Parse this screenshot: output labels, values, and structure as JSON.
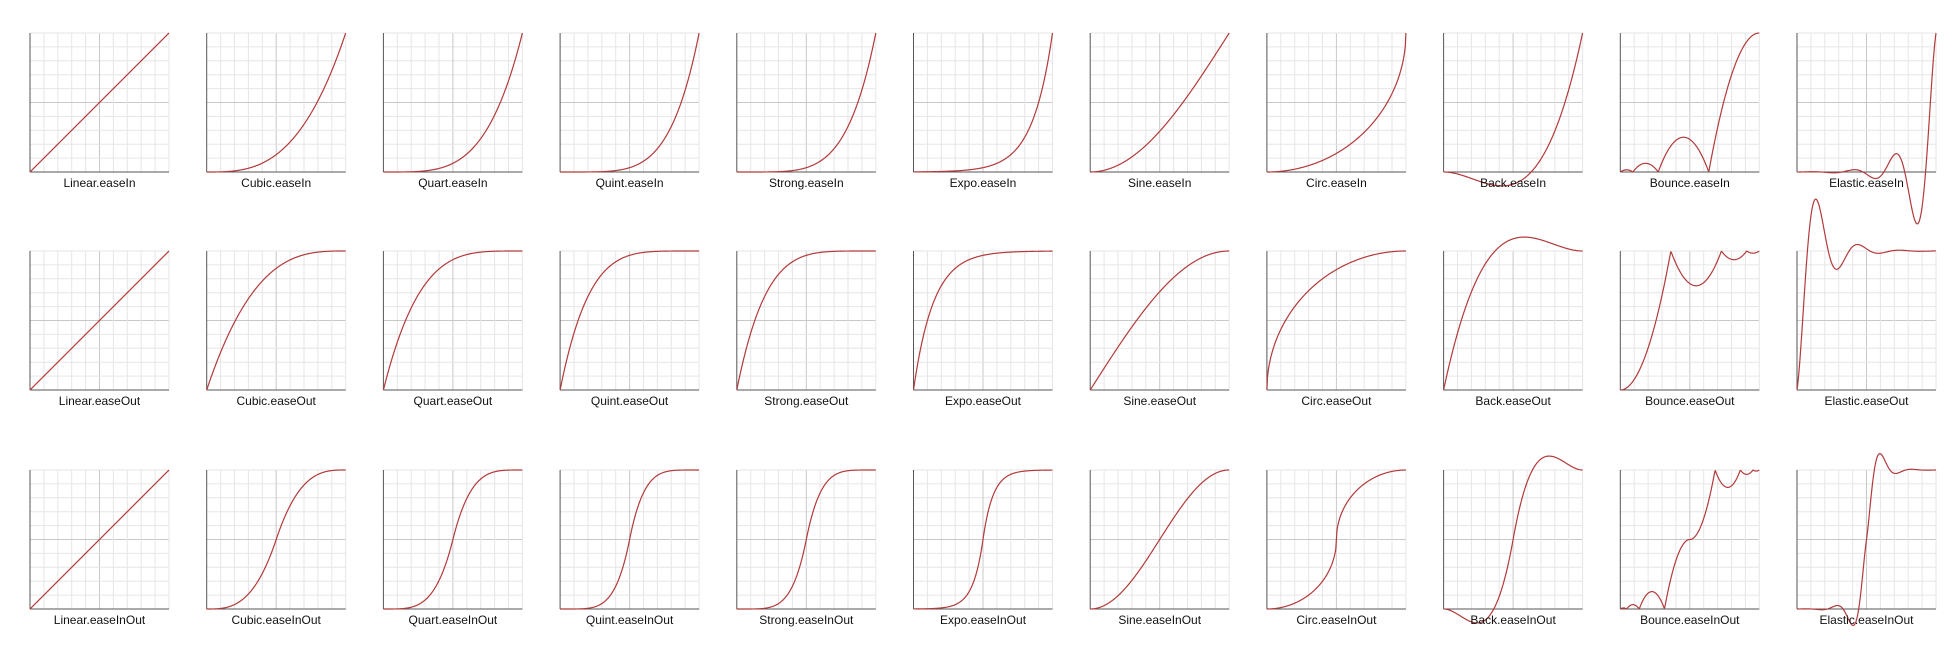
{
  "style": {
    "curve_color": "#b23a3a",
    "grid_minor_color": "#e6e6e6",
    "grid_major_color": "#c8c8c8",
    "axis_color": "#555555",
    "label_color": "#111111",
    "background": "#ffffff"
  },
  "chart_data": {
    "type": "line",
    "grid": true,
    "x_range": [
      0,
      1
    ],
    "y_range": [
      0,
      1
    ],
    "rows": [
      "easeIn",
      "easeOut",
      "easeInOut"
    ],
    "families": [
      "Linear",
      "Cubic",
      "Quart",
      "Quint",
      "Strong",
      "Expo",
      "Sine",
      "Circ",
      "Back",
      "Bounce",
      "Elastic"
    ],
    "charts": [
      {
        "family": "Linear",
        "mode": "easeIn",
        "label": "Linear.easeIn"
      },
      {
        "family": "Cubic",
        "mode": "easeIn",
        "label": "Cubic.easeIn"
      },
      {
        "family": "Quart",
        "mode": "easeIn",
        "label": "Quart.easeIn"
      },
      {
        "family": "Quint",
        "mode": "easeIn",
        "label": "Quint.easeIn"
      },
      {
        "family": "Strong",
        "mode": "easeIn",
        "label": "Strong.easeIn"
      },
      {
        "family": "Expo",
        "mode": "easeIn",
        "label": "Expo.easeIn"
      },
      {
        "family": "Sine",
        "mode": "easeIn",
        "label": "Sine.easeIn"
      },
      {
        "family": "Circ",
        "mode": "easeIn",
        "label": "Circ.easeIn"
      },
      {
        "family": "Back",
        "mode": "easeIn",
        "label": "Back.easeIn"
      },
      {
        "family": "Bounce",
        "mode": "easeIn",
        "label": "Bounce.easeIn"
      },
      {
        "family": "Elastic",
        "mode": "easeIn",
        "label": "Elastic.easeIn"
      },
      {
        "family": "Linear",
        "mode": "easeOut",
        "label": "Linear.easeOut"
      },
      {
        "family": "Cubic",
        "mode": "easeOut",
        "label": "Cubic.easeOut"
      },
      {
        "family": "Quart",
        "mode": "easeOut",
        "label": "Quart.easeOut"
      },
      {
        "family": "Quint",
        "mode": "easeOut",
        "label": "Quint.easeOut"
      },
      {
        "family": "Strong",
        "mode": "easeOut",
        "label": "Strong.easeOut"
      },
      {
        "family": "Expo",
        "mode": "easeOut",
        "label": "Expo.easeOut"
      },
      {
        "family": "Sine",
        "mode": "easeOut",
        "label": "Sine.easeOut"
      },
      {
        "family": "Circ",
        "mode": "easeOut",
        "label": "Circ.easeOut"
      },
      {
        "family": "Back",
        "mode": "easeOut",
        "label": "Back.easeOut"
      },
      {
        "family": "Bounce",
        "mode": "easeOut",
        "label": "Bounce.easeOut"
      },
      {
        "family": "Elastic",
        "mode": "easeOut",
        "label": "Elastic.easeOut"
      },
      {
        "family": "Linear",
        "mode": "easeInOut",
        "label": "Linear.easeInOut"
      },
      {
        "family": "Cubic",
        "mode": "easeInOut",
        "label": "Cubic.easeInOut"
      },
      {
        "family": "Quart",
        "mode": "easeInOut",
        "label": "Quart.easeInOut"
      },
      {
        "family": "Quint",
        "mode": "easeInOut",
        "label": "Quint.easeInOut"
      },
      {
        "family": "Strong",
        "mode": "easeInOut",
        "label": "Strong.easeInOut"
      },
      {
        "family": "Expo",
        "mode": "easeInOut",
        "label": "Expo.easeInOut"
      },
      {
        "family": "Sine",
        "mode": "easeInOut",
        "label": "Sine.easeInOut"
      },
      {
        "family": "Circ",
        "mode": "easeInOut",
        "label": "Circ.easeInOut"
      },
      {
        "family": "Back",
        "mode": "easeInOut",
        "label": "Back.easeInOut"
      },
      {
        "family": "Bounce",
        "mode": "easeInOut",
        "label": "Bounce.easeInOut"
      },
      {
        "family": "Elastic",
        "mode": "easeInOut",
        "label": "Elastic.easeInOut"
      }
    ]
  }
}
